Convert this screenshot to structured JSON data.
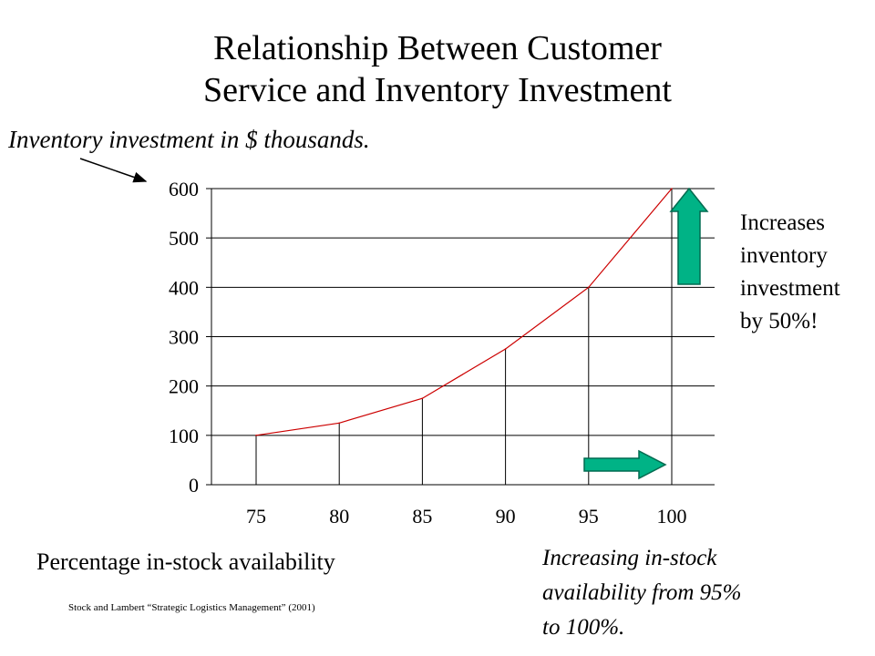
{
  "title_lines": [
    "Relationship Between Customer",
    "Service and Inventory Investment"
  ],
  "annotations": {
    "y_note": "Inventory investment in $ thousands.",
    "x_label": "Percentage in-stock availability",
    "right_lines": [
      "Increases",
      "inventory",
      "investment",
      "by 50%!"
    ],
    "bottom_lines": [
      "Increasing in-stock",
      "availability from 95%",
      "to 100%."
    ],
    "citation": "Stock and Lambert “Strategic Logistics Management” (2001)"
  },
  "colors": {
    "line": "#cc0000",
    "arrow_fill": "#00b386",
    "arrow_stroke": "#006b50",
    "axis": "#000000"
  },
  "chart_data": {
    "type": "line",
    "title": "",
    "x": [
      75,
      80,
      85,
      90,
      95,
      100
    ],
    "series": [
      {
        "values": [
          100,
          125,
          175,
          275,
          400,
          600
        ]
      }
    ],
    "categories": [
      "75",
      "80",
      "85",
      "90",
      "95",
      "100"
    ],
    "y_ticks": [
      "0",
      "100",
      "200",
      "300",
      "400",
      "500",
      "600"
    ],
    "ylim": [
      0,
      600
    ],
    "xlabel": "Percentage in-stock availability",
    "ylabel": "Inventory investment in $ thousands.",
    "grid": true,
    "legend": "none"
  }
}
